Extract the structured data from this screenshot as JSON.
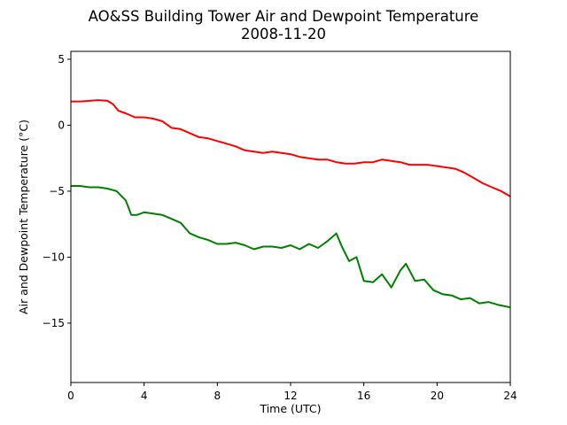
{
  "chart_data": {
    "type": "line",
    "title": "AO&SS Building Tower Air and Dewpoint Temperature",
    "subtitle": "2008-11-20",
    "xlabel": "Time (UTC)",
    "ylabel": "Air and Dewpoint Temperature (°C)",
    "xlim": [
      0,
      24
    ],
    "ylim": [
      -19.5,
      5.6
    ],
    "x_ticks": [
      0,
      4,
      8,
      12,
      16,
      20,
      24
    ],
    "y_ticks": [
      5,
      0,
      -5,
      -10,
      -15
    ],
    "x_tick_labels": [
      "0",
      "4",
      "8",
      "12",
      "16",
      "20",
      "24"
    ],
    "y_tick_labels": [
      "5",
      "0",
      "−5",
      "−10",
      "−15"
    ],
    "grid": false,
    "legend": "none",
    "series": [
      {
        "color": "#ff0000",
        "points": [
          [
            0,
            1.8
          ],
          [
            0.5,
            1.8
          ],
          [
            1.0,
            1.85
          ],
          [
            1.5,
            1.9
          ],
          [
            2.0,
            1.85
          ],
          [
            2.3,
            1.6
          ],
          [
            2.6,
            1.1
          ],
          [
            3.0,
            0.9
          ],
          [
            3.5,
            0.6
          ],
          [
            4.0,
            0.6
          ],
          [
            4.5,
            0.5
          ],
          [
            5.0,
            0.3
          ],
          [
            5.5,
            -0.2
          ],
          [
            6.0,
            -0.3
          ],
          [
            6.5,
            -0.6
          ],
          [
            7.0,
            -0.9
          ],
          [
            7.5,
            -1.0
          ],
          [
            8.0,
            -1.2
          ],
          [
            8.5,
            -1.4
          ],
          [
            9.0,
            -1.6
          ],
          [
            9.5,
            -1.9
          ],
          [
            10.0,
            -2.0
          ],
          [
            10.5,
            -2.1
          ],
          [
            11.0,
            -2.0
          ],
          [
            11.5,
            -2.1
          ],
          [
            12.0,
            -2.2
          ],
          [
            12.5,
            -2.4
          ],
          [
            13.0,
            -2.5
          ],
          [
            13.5,
            -2.6
          ],
          [
            14.0,
            -2.6
          ],
          [
            14.5,
            -2.8
          ],
          [
            15.0,
            -2.9
          ],
          [
            15.5,
            -2.9
          ],
          [
            16.0,
            -2.8
          ],
          [
            16.5,
            -2.8
          ],
          [
            17.0,
            -2.6
          ],
          [
            17.5,
            -2.7
          ],
          [
            18.0,
            -2.8
          ],
          [
            18.5,
            -3.0
          ],
          [
            19.0,
            -3.0
          ],
          [
            19.5,
            -3.0
          ],
          [
            20.0,
            -3.1
          ],
          [
            20.5,
            -3.2
          ],
          [
            21.0,
            -3.3
          ],
          [
            21.5,
            -3.6
          ],
          [
            22.0,
            -4.0
          ],
          [
            22.5,
            -4.4
          ],
          [
            23.0,
            -4.7
          ],
          [
            23.5,
            -5.0
          ],
          [
            24.0,
            -5.4
          ]
        ]
      },
      {
        "color": "#008000",
        "points": [
          [
            0,
            -4.6
          ],
          [
            0.5,
            -4.6
          ],
          [
            1.0,
            -4.7
          ],
          [
            1.5,
            -4.7
          ],
          [
            2.0,
            -4.8
          ],
          [
            2.5,
            -5.0
          ],
          [
            3.0,
            -5.7
          ],
          [
            3.3,
            -6.8
          ],
          [
            3.6,
            -6.8
          ],
          [
            4.0,
            -6.6
          ],
          [
            4.5,
            -6.7
          ],
          [
            5.0,
            -6.8
          ],
          [
            5.5,
            -7.1
          ],
          [
            6.0,
            -7.4
          ],
          [
            6.5,
            -8.2
          ],
          [
            7.0,
            -8.5
          ],
          [
            7.5,
            -8.7
          ],
          [
            8.0,
            -9.0
          ],
          [
            8.5,
            -9.0
          ],
          [
            9.0,
            -8.9
          ],
          [
            9.5,
            -9.1
          ],
          [
            10.0,
            -9.4
          ],
          [
            10.5,
            -9.2
          ],
          [
            11.0,
            -9.2
          ],
          [
            11.5,
            -9.3
          ],
          [
            12.0,
            -9.1
          ],
          [
            12.5,
            -9.4
          ],
          [
            13.0,
            -9.0
          ],
          [
            13.5,
            -9.3
          ],
          [
            14.0,
            -8.8
          ],
          [
            14.5,
            -8.2
          ],
          [
            14.8,
            -9.2
          ],
          [
            15.2,
            -10.3
          ],
          [
            15.6,
            -10.0
          ],
          [
            16.0,
            -11.8
          ],
          [
            16.5,
            -11.9
          ],
          [
            17.0,
            -11.3
          ],
          [
            17.5,
            -12.3
          ],
          [
            18.0,
            -11.0
          ],
          [
            18.3,
            -10.5
          ],
          [
            18.8,
            -11.8
          ],
          [
            19.3,
            -11.7
          ],
          [
            19.8,
            -12.5
          ],
          [
            20.3,
            -12.8
          ],
          [
            20.8,
            -12.9
          ],
          [
            21.3,
            -13.2
          ],
          [
            21.8,
            -13.1
          ],
          [
            22.3,
            -13.5
          ],
          [
            22.8,
            -13.4
          ],
          [
            23.3,
            -13.6
          ],
          [
            24.0,
            -13.8
          ]
        ]
      }
    ]
  }
}
